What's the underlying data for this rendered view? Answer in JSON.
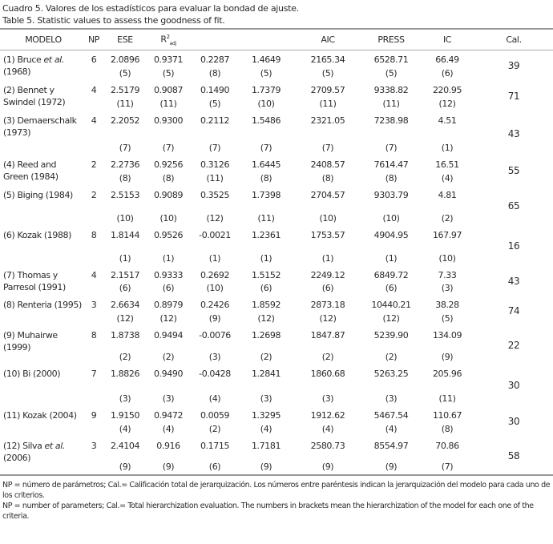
{
  "caption_es": "Cuadro 5. Valores de los estadísticos para evaluar la bondad de ajuste.",
  "caption_en": "Table 5. Statistic values to assess the goodness of fit.",
  "headers": {
    "model": "MODELO",
    "np": "NP",
    "ese": "ESE",
    "r2_base": "R",
    "r2_sup": "2",
    "r2_sub": "adj",
    "col5": "",
    "col6": "",
    "aic": "AIC",
    "press": "PRESS",
    "ic": "IC",
    "cal": "Cal."
  },
  "rows": [
    {
      "pre": "(1) Bruce ",
      "it": "et al.",
      "post": " (1968)",
      "np": "6",
      "v": [
        "2.0896",
        "0.9371",
        "0.2287",
        "1.4649",
        "2165.34",
        "6528.71",
        "66.49"
      ],
      "r": [
        "(5)",
        "(5)",
        "(8)",
        "(5)",
        "(5)",
        "(5)",
        "(6)"
      ],
      "cal": "39"
    },
    {
      "pre": "(2) Bennet y Swindel (1972)",
      "it": "",
      "post": "",
      "np": "4",
      "v": [
        "2.5179",
        "0.9087",
        "0.1490",
        "1.7379",
        "2709.57",
        "9338.82",
        "220.95"
      ],
      "r": [
        "(11)",
        "(11)",
        "(5)",
        "(10)",
        "(11)",
        "(11)",
        "(12)"
      ],
      "cal": "71"
    },
    {
      "pre": "(3) Demaerschalk (1973)",
      "it": "",
      "post": "",
      "np": "4",
      "v": [
        "2.2052",
        "0.9300",
        "0.2112",
        "1.5486",
        "2321.05",
        "7238.98",
        "4.51"
      ],
      "r": [
        "(7)",
        "(7)",
        "(7)",
        "(7)",
        "(7)",
        "(7)",
        "(1)"
      ],
      "cal": "43"
    },
    {
      "pre": "(4) Reed and Green (1984)",
      "it": "",
      "post": "",
      "np": "2",
      "v": [
        "2.2736",
        "0.9256",
        "0.3126",
        "1.6445",
        "2408.57",
        "7614.47",
        "16.51"
      ],
      "r": [
        "(8)",
        "(8)",
        "(11)",
        "(8)",
        "(8)",
        "(8)",
        "(4)"
      ],
      "cal": "55"
    },
    {
      "pre": "(5) Biging (1984)",
      "it": "",
      "post": "",
      "np": "2",
      "v": [
        "2.5153",
        "0.9089",
        "0.3525",
        "1.7398",
        "2704.57",
        "9303.79",
        "4.81"
      ],
      "r": [
        "(10)",
        "(10)",
        "(12)",
        "(11)",
        "(10)",
        "(10)",
        "(2)"
      ],
      "cal": "65"
    },
    {
      "pre": "(6) Kozak (1988)",
      "it": "",
      "post": "",
      "np": "8",
      "v": [
        "1.8144",
        "0.9526",
        "-0.0021",
        "1.2361",
        "1753.57",
        "4904.95",
        "167.97"
      ],
      "r": [
        "(1)",
        "(1)",
        "(1)",
        "(1)",
        "(1)",
        "(1)",
        "(10)"
      ],
      "cal": "16"
    },
    {
      "pre": "(7) Thomas y Parresol (1991)",
      "it": "",
      "post": "",
      "np": "4",
      "v": [
        "2.1517",
        "0.9333",
        "0.2692",
        "1.5152",
        "2249.12",
        "6849.72",
        "7.33"
      ],
      "r": [
        "(6)",
        "(6)",
        "(10)",
        "(6)",
        "(6)",
        "(6)",
        "(3)"
      ],
      "cal": "43"
    },
    {
      "pre": "(8) Renteria (1995)",
      "it": "",
      "post": "",
      "np": "3",
      "v": [
        "2.6634",
        "0.8979",
        "0.2426",
        "1.8592",
        "2873.18",
        "10440.21",
        "38.28"
      ],
      "r": [
        "(12)",
        "(12)",
        "(9)",
        "(12)",
        "(12)",
        "(12)",
        "(5)"
      ],
      "cal": "74"
    },
    {
      "pre": "(9) Muhairwe (1999)",
      "it": "",
      "post": "",
      "np": "8",
      "v": [
        "1.8738",
        "0.9494",
        "-0.0076",
        "1.2698",
        "1847.87",
        "5239.90",
        "134.09"
      ],
      "r": [
        "(2)",
        "(2)",
        "(3)",
        "(2)",
        "(2)",
        "(2)",
        "(9)"
      ],
      "cal": "22"
    },
    {
      "pre": "(10) Bi (2000)",
      "it": "",
      "post": "",
      "np": "7",
      "v": [
        "1.8826",
        "0.9490",
        "-0.0428",
        "1.2841",
        "1860.68",
        "5263.25",
        "205.96"
      ],
      "r": [
        "(3)",
        "(3)",
        "(4)",
        "(3)",
        "(3)",
        "(3)",
        "(11)"
      ],
      "cal": "30"
    },
    {
      "pre": "(11) Kozak (2004)",
      "it": "",
      "post": "",
      "np": "9",
      "v": [
        "1.9150",
        "0.9472",
        "0.0059",
        "1.3295",
        "1912.62",
        "5467.54",
        "110.67"
      ],
      "r": [
        "(4)",
        "(4)",
        "(2)",
        "(4)",
        "(4)",
        "(4)",
        "(8)"
      ],
      "cal": "30"
    },
    {
      "pre": "(12) Silva ",
      "it": "et al.",
      "post": " (2006)",
      "np": "3",
      "v": [
        "2.4104",
        "0.916",
        "0.1715",
        "1.7181",
        "2580.73",
        "8554.97",
        "70.86"
      ],
      "r": [
        "(9)",
        "(9)",
        "(6)",
        "(9)",
        "(9)",
        "(9)",
        "(7)"
      ],
      "cal": "58"
    }
  ],
  "footnote_es": "NP = número de parámetros; Cal.= Calificación total de jerarquización. Los números entre paréntesis indican la jerarquización del modelo para cada uno de los criterios.",
  "footnote_en": "NP = number of parameters; Cal.= Total hierarchization evaluation. The numbers in brackets mean the hierarchization of the model for each one of the criteria."
}
